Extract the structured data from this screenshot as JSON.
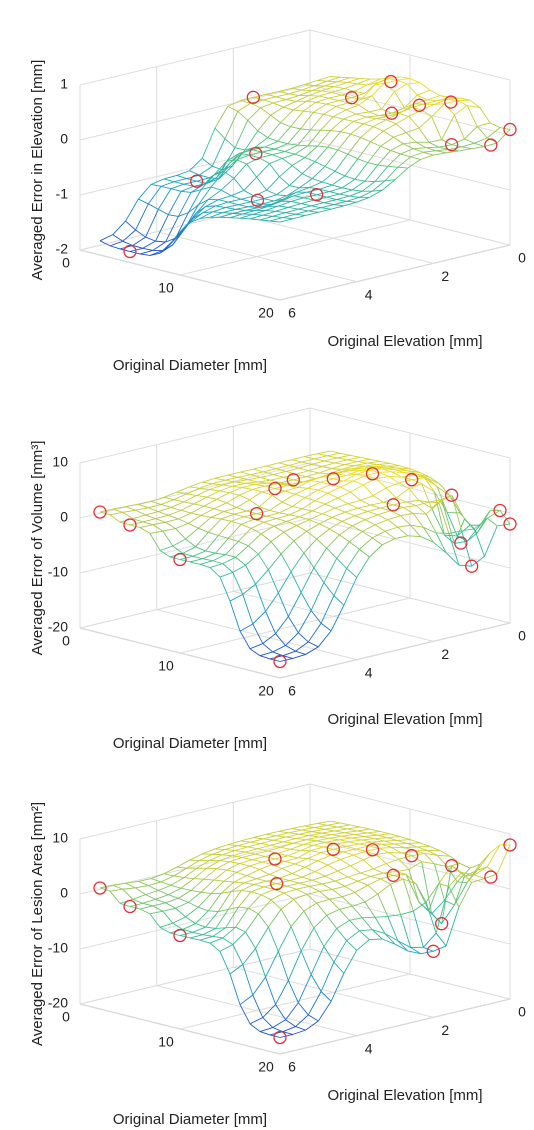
{
  "chart_data": [
    {
      "type": "surface3d",
      "xlabel": "Original Diameter [mm]",
      "ylabel": "Original Elevation [mm]",
      "zlabel": "Averaged Error in Elevation [mm]",
      "xlim": [
        0,
        20
      ],
      "xticks": [
        0,
        10,
        20
      ],
      "ylim": [
        0,
        6
      ],
      "yticks": [
        0,
        2,
        4,
        6
      ],
      "zlim": [
        -2,
        1
      ],
      "zticks": [
        -2,
        -1,
        0,
        1
      ],
      "grid": true,
      "marker_color": "#e0303a",
      "points": {
        "x": [
          5,
          4,
          8,
          12,
          16,
          8,
          10,
          12,
          14,
          16,
          18,
          20,
          20,
          2
        ],
        "y": [
          6,
          4,
          3.5,
          4.5,
          4,
          1,
          0.5,
          1,
          0.8,
          0.5,
          1,
          0.5,
          0,
          2
        ],
        "z": [
          -1.8,
          -0.9,
          -0.3,
          -0.8,
          -0.6,
          0.3,
          0.6,
          0.2,
          0.4,
          0.5,
          -0.1,
          -0.1,
          0.1,
          0.2
        ]
      }
    },
    {
      "type": "surface3d",
      "xlabel": "Original Diameter [mm]",
      "ylabel": "Original Elevation [mm]",
      "zlabel": "Averaged Error of Volume [mm³]",
      "xlim": [
        0,
        20
      ],
      "xticks": [
        0,
        10,
        20
      ],
      "ylim": [
        0,
        6
      ],
      "yticks": [
        0,
        2,
        4,
        6
      ],
      "zlim": [
        -20,
        10
      ],
      "zticks": [
        -20,
        -10,
        0,
        10
      ],
      "grid": true,
      "marker_color": "#e0303a",
      "points": {
        "x": [
          2,
          5,
          10,
          20,
          8,
          10,
          12,
          14,
          16,
          18,
          20,
          17,
          20,
          19,
          6,
          10
        ],
        "y": [
          6,
          6,
          6,
          6,
          3,
          2,
          1.5,
          1,
          2,
          1,
          1,
          0.5,
          0,
          0,
          2,
          4
        ],
        "z": [
          2,
          1,
          -3,
          -17,
          4,
          5,
          6,
          5,
          3,
          4,
          -8,
          -6,
          -2,
          0,
          3,
          2
        ]
      }
    },
    {
      "type": "surface3d",
      "xlabel": "Original Diameter [mm]",
      "ylabel": "Original Elevation [mm]",
      "zlabel": "Averaged Error of Lesion Area [mm²]",
      "xlim": [
        0,
        20
      ],
      "xticks": [
        0,
        10,
        20
      ],
      "ylim": [
        0,
        6
      ],
      "yticks": [
        0,
        2,
        4,
        6
      ],
      "zlim": [
        -20,
        10
      ],
      "zticks": [
        -20,
        -10,
        0,
        10
      ],
      "grid": true,
      "marker_color": "#e0303a",
      "points": {
        "x": [
          2,
          5,
          10,
          20,
          8,
          10,
          12,
          14,
          16,
          18,
          20,
          17,
          20,
          20,
          12
        ],
        "y": [
          6,
          6,
          6,
          6,
          3,
          2,
          1.5,
          1,
          2,
          1,
          2,
          1,
          0,
          0.5,
          4
        ],
        "z": [
          2,
          0,
          -3,
          -17,
          5,
          6,
          6,
          5,
          4,
          5,
          -8,
          -6,
          8,
          3,
          4
        ]
      }
    }
  ]
}
